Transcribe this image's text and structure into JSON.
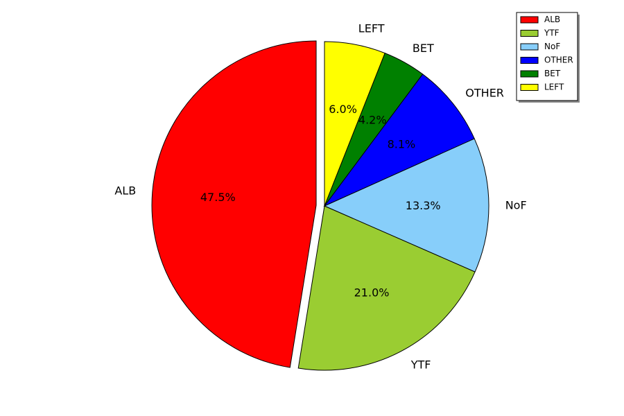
{
  "chart_data": {
    "type": "pie",
    "categories": [
      "ALB",
      "YTF",
      "NoF",
      "OTHER",
      "BET",
      "LEFT"
    ],
    "values": [
      47.5,
      21.0,
      13.3,
      8.1,
      4.2,
      6.0
    ],
    "percent_labels": [
      "47.5%",
      "21.0%",
      "13.3%",
      "8.1%",
      "4.2%",
      "6.0%"
    ],
    "colors": [
      "#ff0000",
      "#9acd32",
      "#87cefa",
      "#0000ff",
      "#008000",
      "#ffff00"
    ],
    "exploded": [
      true,
      false,
      false,
      false,
      false,
      false
    ],
    "start_angle_deg": 90,
    "direction": "counterclockwise",
    "legend": {
      "placement": "top-right",
      "entries": [
        "ALB",
        "YTF",
        "NoF",
        "OTHER",
        "BET",
        "LEFT"
      ]
    }
  }
}
